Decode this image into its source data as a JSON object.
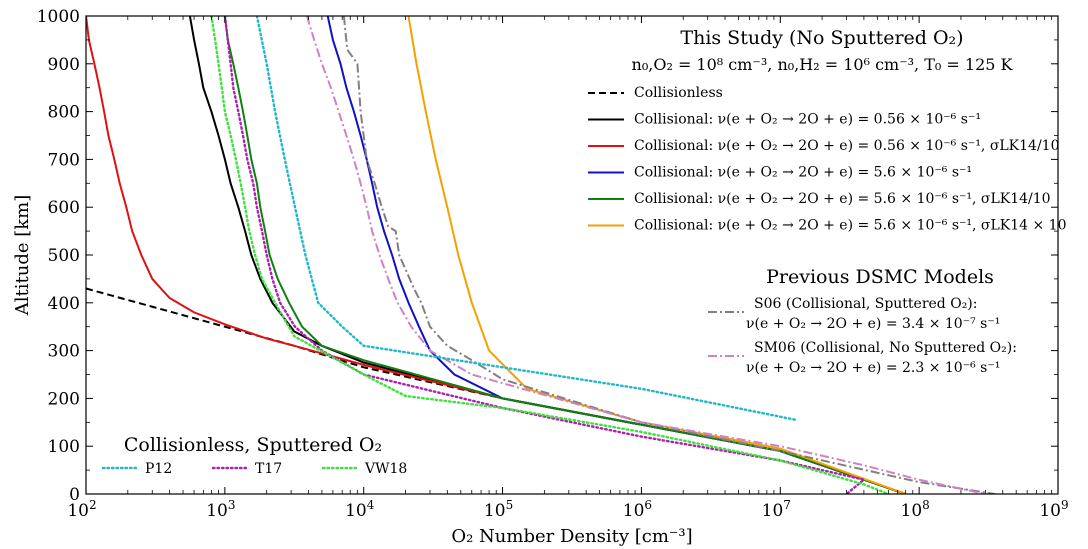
{
  "chart_data": {
    "type": "line",
    "xlabel": "O₂ Number Density [cm⁻³]",
    "ylabel": "Altitude [km]",
    "xscale": "log",
    "xlim": [
      100,
      1000000000
    ],
    "ylim": [
      0,
      1000
    ],
    "x_ticks": [
      {
        "value": 100,
        "base": "10",
        "exp": "2"
      },
      {
        "value": 1000,
        "base": "10",
        "exp": "3"
      },
      {
        "value": 10000,
        "base": "10",
        "exp": "4"
      },
      {
        "value": 100000,
        "base": "10",
        "exp": "5"
      },
      {
        "value": 1000000,
        "base": "10",
        "exp": "6"
      },
      {
        "value": 10000000,
        "base": "10",
        "exp": "7"
      },
      {
        "value": 100000000,
        "base": "10",
        "exp": "8"
      },
      {
        "value": 1000000000,
        "base": "10",
        "exp": "9"
      }
    ],
    "y_ticks": [
      0,
      100,
      200,
      300,
      400,
      500,
      600,
      700,
      800,
      900,
      1000
    ],
    "legends": {
      "this_study": {
        "title": "This Study (No Sputtered O₂)",
        "subtitle": "n₀,O₂ = 10⁸ cm⁻³, n₀,H₂ = 10⁶ cm⁻³, T₀ = 125 K",
        "placement": "top-right"
      },
      "previous": {
        "title": "Previous DSMC Models",
        "placement": "center-right"
      },
      "sputtered": {
        "title": "Collisionless, Sputtered O₂",
        "placement": "lower-left"
      }
    },
    "series": [
      {
        "name": "Collisionless",
        "legend_group": "this_study",
        "color": "#000000",
        "style": "dashed",
        "points": [
          [
            100,
            430
          ],
          [
            1000,
            350
          ],
          [
            3162,
            310
          ],
          [
            10000,
            265
          ],
          [
            100000,
            200
          ],
          [
            1000000,
            145
          ],
          [
            10000000,
            90
          ],
          [
            80000000,
            0
          ]
        ]
      },
      {
        "name": "Collisional: ν(e + O₂ → 2O + e) = 0.56 × 10⁻⁶ s⁻¹",
        "legend_group": "this_study",
        "color": "#000000",
        "style": "solid",
        "points": [
          [
            560,
            1000
          ],
          [
            600,
            950
          ],
          [
            650,
            900
          ],
          [
            700,
            850
          ],
          [
            800,
            800
          ],
          [
            900,
            750
          ],
          [
            1000,
            700
          ],
          [
            1100,
            650
          ],
          [
            1250,
            600
          ],
          [
            1400,
            550
          ],
          [
            1550,
            500
          ],
          [
            1800,
            450
          ],
          [
            2200,
            400
          ],
          [
            3162,
            340
          ],
          [
            5000,
            310
          ],
          [
            10000,
            275
          ],
          [
            100000,
            200
          ],
          [
            1000000,
            145
          ],
          [
            10000000,
            90
          ],
          [
            80000000,
            0
          ]
        ]
      },
      {
        "name": "Collisional: ν(e + O₂ → 2O + e) = 0.56 × 10⁻⁶ s⁻¹, σLK14/10",
        "legend_group": "this_study",
        "color": "#e01010",
        "style": "solid",
        "points": [
          [
            100,
            1000
          ],
          [
            105,
            950
          ],
          [
            115,
            900
          ],
          [
            125,
            850
          ],
          [
            135,
            800
          ],
          [
            145,
            750
          ],
          [
            160,
            700
          ],
          [
            175,
            650
          ],
          [
            195,
            600
          ],
          [
            215,
            550
          ],
          [
            250,
            500
          ],
          [
            300,
            450
          ],
          [
            400,
            410
          ],
          [
            600,
            380
          ],
          [
            1000,
            355
          ],
          [
            2000,
            325
          ],
          [
            3162,
            310
          ],
          [
            10000,
            270
          ],
          [
            100000,
            200
          ],
          [
            1000000,
            145
          ],
          [
            10000000,
            90
          ],
          [
            80000000,
            0
          ]
        ]
      },
      {
        "name": "Collisional: ν(e + O₂ → 2O + e) = 5.6 × 10⁻⁶ s⁻¹",
        "legend_group": "this_study",
        "color": "#1010c8",
        "style": "solid",
        "points": [
          [
            5500,
            1000
          ],
          [
            6000,
            950
          ],
          [
            6800,
            900
          ],
          [
            7500,
            850
          ],
          [
            8500,
            800
          ],
          [
            9500,
            750
          ],
          [
            10500,
            700
          ],
          [
            11500,
            650
          ],
          [
            12500,
            600
          ],
          [
            14000,
            550
          ],
          [
            16000,
            500
          ],
          [
            18000,
            450
          ],
          [
            21000,
            400
          ],
          [
            25000,
            350
          ],
          [
            30000,
            300
          ],
          [
            45000,
            250
          ],
          [
            100000,
            200
          ],
          [
            1000000,
            145
          ],
          [
            10000000,
            90
          ],
          [
            80000000,
            0
          ]
        ]
      },
      {
        "name": "Collisional: ν(e + O₂ → 2O + e) = 5.6 × 10⁻⁶ s⁻¹, σLK14/10",
        "legend_group": "this_study",
        "color": "#108010",
        "style": "solid",
        "points": [
          [
            1000,
            1000
          ],
          [
            1050,
            950
          ],
          [
            1150,
            900
          ],
          [
            1250,
            850
          ],
          [
            1350,
            800
          ],
          [
            1450,
            750
          ],
          [
            1550,
            700
          ],
          [
            1700,
            650
          ],
          [
            1800,
            600
          ],
          [
            1950,
            550
          ],
          [
            2100,
            500
          ],
          [
            2400,
            450
          ],
          [
            2900,
            400
          ],
          [
            3600,
            350
          ],
          [
            5000,
            310
          ],
          [
            10000,
            280
          ],
          [
            100000,
            200
          ],
          [
            1000000,
            145
          ],
          [
            10000000,
            90
          ],
          [
            80000000,
            0
          ]
        ]
      },
      {
        "name": "Collisional: ν(e + O₂ → 2O + e) = 5.6 × 10⁻⁶ s⁻¹, σLK14 × 10",
        "legend_group": "this_study",
        "color": "#f5a000",
        "style": "solid",
        "points": [
          [
            21000,
            1000
          ],
          [
            24000,
            900
          ],
          [
            28000,
            800
          ],
          [
            33000,
            700
          ],
          [
            40000,
            600
          ],
          [
            48000,
            500
          ],
          [
            60000,
            400
          ],
          [
            80000,
            300
          ],
          [
            150000,
            220
          ],
          [
            1000000,
            150
          ],
          [
            10000000,
            95
          ],
          [
            80000000,
            0
          ]
        ]
      },
      {
        "name": "S06 (Collisional, Sputtered O₂): ν(e + O₂ → 2O + e) = 3.4 × 10⁻⁷ s⁻¹",
        "legend_group": "previous",
        "color": "#808080",
        "style": "dashdot",
        "points": [
          [
            7200,
            1000
          ],
          [
            7600,
            930
          ],
          [
            9000,
            900
          ],
          [
            9500,
            800
          ],
          [
            10500,
            700
          ],
          [
            12000,
            650
          ],
          [
            13500,
            600
          ],
          [
            15000,
            560
          ],
          [
            17000,
            550
          ],
          [
            18000,
            500
          ],
          [
            20000,
            470
          ],
          [
            23000,
            430
          ],
          [
            26000,
            400
          ],
          [
            30000,
            350
          ],
          [
            40000,
            310
          ],
          [
            60000,
            280
          ],
          [
            100000,
            240
          ],
          [
            1000000,
            150
          ],
          [
            10000000,
            90
          ],
          [
            100000000,
            25
          ],
          [
            350000000,
            0
          ]
        ]
      },
      {
        "name": "SM06 (Collisional, No Sputtered O₂): ν(e + O₂ → 2O + e) = 2.3 × 10⁻⁶ s⁻¹",
        "legend_group": "previous",
        "color": "#d080c8",
        "style": "dashdot",
        "points": [
          [
            3900,
            1000
          ],
          [
            4400,
            950
          ],
          [
            5000,
            900
          ],
          [
            5800,
            850
          ],
          [
            6600,
            800
          ],
          [
            7500,
            750
          ],
          [
            8500,
            700
          ],
          [
            9500,
            650
          ],
          [
            10500,
            600
          ],
          [
            11500,
            550
          ],
          [
            13000,
            500
          ],
          [
            15000,
            450
          ],
          [
            17500,
            400
          ],
          [
            22000,
            350
          ],
          [
            30000,
            300
          ],
          [
            60000,
            250
          ],
          [
            1000000,
            150
          ],
          [
            10000000,
            100
          ],
          [
            40000000,
            60
          ],
          [
            100000000,
            30
          ],
          [
            300000000,
            0
          ]
        ]
      },
      {
        "name": "P12",
        "legend_group": "sputtered",
        "color": "#20b8c8",
        "style": "dotted",
        "points": [
          [
            1700,
            1000
          ],
          [
            2000,
            900
          ],
          [
            2300,
            800
          ],
          [
            2700,
            700
          ],
          [
            3200,
            600
          ],
          [
            3800,
            500
          ],
          [
            4700,
            400
          ],
          [
            7000,
            350
          ],
          [
            10000,
            310
          ],
          [
            100000,
            265
          ],
          [
            1000000,
            220
          ],
          [
            13000000,
            155
          ]
        ]
      },
      {
        "name": "T17",
        "legend_group": "sputtered",
        "color": "#b020b0",
        "style": "dotted",
        "points": [
          [
            1000,
            1000
          ],
          [
            1050,
            950
          ],
          [
            1100,
            900
          ],
          [
            1150,
            850
          ],
          [
            1250,
            800
          ],
          [
            1350,
            750
          ],
          [
            1450,
            700
          ],
          [
            1600,
            650
          ],
          [
            1700,
            600
          ],
          [
            1850,
            550
          ],
          [
            2000,
            500
          ],
          [
            2200,
            450
          ],
          [
            2500,
            400
          ],
          [
            3200,
            350
          ],
          [
            5000,
            300
          ],
          [
            10000,
            250
          ],
          [
            100000,
            180
          ],
          [
            1000000,
            120
          ],
          [
            10000000,
            70
          ],
          [
            40000000,
            30
          ],
          [
            30000000,
            0
          ]
        ]
      },
      {
        "name": "VW18",
        "legend_group": "sputtered",
        "color": "#40e040",
        "style": "dotted",
        "points": [
          [
            800,
            1000
          ],
          [
            850,
            950
          ],
          [
            900,
            900
          ],
          [
            950,
            850
          ],
          [
            1000,
            800
          ],
          [
            1100,
            750
          ],
          [
            1200,
            700
          ],
          [
            1300,
            650
          ],
          [
            1400,
            600
          ],
          [
            1500,
            550
          ],
          [
            1650,
            500
          ],
          [
            1850,
            450
          ],
          [
            2300,
            400
          ],
          [
            3162,
            330
          ],
          [
            10000,
            250
          ],
          [
            20000,
            205
          ],
          [
            100000,
            180
          ],
          [
            1000000,
            130
          ],
          [
            10000000,
            70
          ],
          [
            40000000,
            20
          ],
          [
            60000000,
            0
          ]
        ]
      }
    ]
  }
}
